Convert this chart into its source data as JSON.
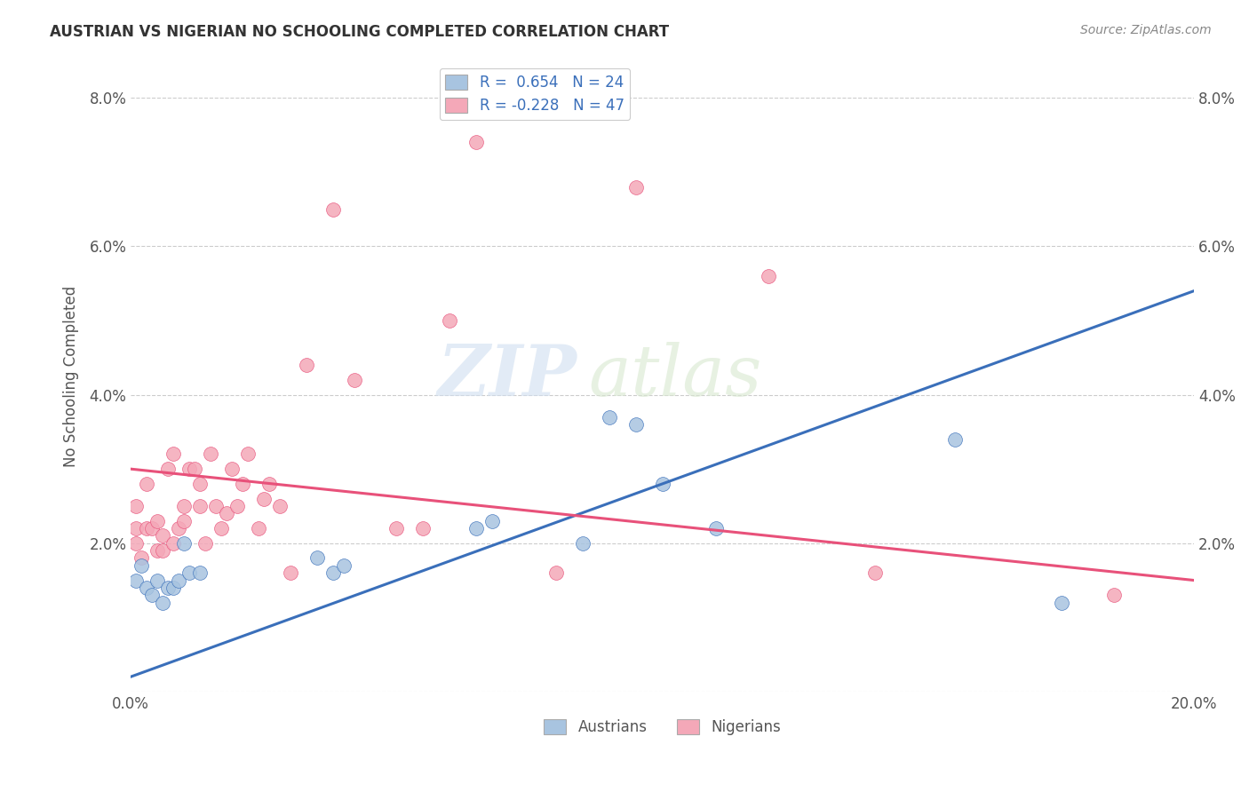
{
  "title": "AUSTRIAN VS NIGERIAN NO SCHOOLING COMPLETED CORRELATION CHART",
  "source": "Source: ZipAtlas.com",
  "ylabel": "No Schooling Completed",
  "xlabel": "",
  "xlim": [
    0.0,
    0.2
  ],
  "ylim": [
    0.0,
    0.085
  ],
  "xticks": [
    0.0,
    0.05,
    0.1,
    0.15,
    0.2
  ],
  "xtick_labels": [
    "0.0%",
    "",
    "",
    "",
    "20.0%"
  ],
  "yticks": [
    0.0,
    0.02,
    0.04,
    0.06,
    0.08
  ],
  "ytick_labels": [
    "",
    "2.0%",
    "4.0%",
    "6.0%",
    "8.0%"
  ],
  "austrians_R": 0.654,
  "austrians_N": 24,
  "nigerians_R": -0.228,
  "nigerians_N": 47,
  "austrians_color": "#a8c4e0",
  "nigerians_color": "#f4a8b8",
  "austrians_line_color": "#3a6fba",
  "nigerians_line_color": "#e8517a",
  "watermark": "ZIPatlas",
  "background_color": "#ffffff",
  "legend_color": "#3a6fba",
  "aus_line_x": [
    0.0,
    0.2
  ],
  "aus_line_y": [
    0.002,
    0.054
  ],
  "nig_line_x": [
    0.0,
    0.2
  ],
  "nig_line_y": [
    0.03,
    0.015
  ],
  "austrians_x": [
    0.001,
    0.002,
    0.003,
    0.004,
    0.005,
    0.006,
    0.007,
    0.008,
    0.009,
    0.01,
    0.011,
    0.013,
    0.035,
    0.038,
    0.04,
    0.065,
    0.068,
    0.085,
    0.09,
    0.095,
    0.1,
    0.11,
    0.155,
    0.175
  ],
  "austrians_y": [
    0.015,
    0.017,
    0.014,
    0.013,
    0.015,
    0.012,
    0.014,
    0.014,
    0.015,
    0.02,
    0.016,
    0.016,
    0.018,
    0.016,
    0.017,
    0.022,
    0.023,
    0.02,
    0.037,
    0.036,
    0.028,
    0.022,
    0.034,
    0.012
  ],
  "nigerians_x": [
    0.001,
    0.001,
    0.001,
    0.002,
    0.003,
    0.003,
    0.004,
    0.005,
    0.005,
    0.006,
    0.006,
    0.007,
    0.008,
    0.008,
    0.009,
    0.01,
    0.01,
    0.011,
    0.012,
    0.013,
    0.013,
    0.014,
    0.015,
    0.016,
    0.017,
    0.018,
    0.019,
    0.02,
    0.021,
    0.022,
    0.024,
    0.025,
    0.026,
    0.028,
    0.03,
    0.033,
    0.038,
    0.042,
    0.05,
    0.055,
    0.06,
    0.065,
    0.08,
    0.095,
    0.12,
    0.14,
    0.185
  ],
  "nigerians_y": [
    0.02,
    0.022,
    0.025,
    0.018,
    0.022,
    0.028,
    0.022,
    0.019,
    0.023,
    0.019,
    0.021,
    0.03,
    0.02,
    0.032,
    0.022,
    0.023,
    0.025,
    0.03,
    0.03,
    0.025,
    0.028,
    0.02,
    0.032,
    0.025,
    0.022,
    0.024,
    0.03,
    0.025,
    0.028,
    0.032,
    0.022,
    0.026,
    0.028,
    0.025,
    0.016,
    0.044,
    0.065,
    0.042,
    0.022,
    0.022,
    0.05,
    0.074,
    0.016,
    0.068,
    0.056,
    0.016,
    0.013
  ]
}
